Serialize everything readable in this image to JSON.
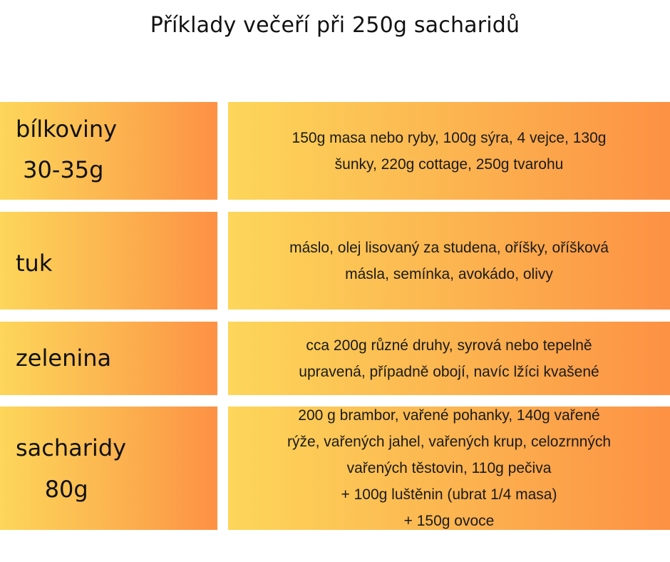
{
  "title": "Příklady večeří při 250g sacharidů",
  "rows": [
    {
      "label_lines": [
        "bílkoviny",
        " 30-35g"
      ],
      "desc_lines": [
        "150g masa nebo ryby, 100g sýra, 4 vejce, 130g",
        "šunky, 220g cottage, 250g tvarohu"
      ]
    },
    {
      "label_lines": [
        "tuk"
      ],
      "desc_lines": [
        "máslo, olej lisovaný za studena, oříšky, oříšková",
        "másla, semínka, avokádo, olivy"
      ]
    },
    {
      "label_lines": [
        "zelenina"
      ],
      "desc_lines": [
        "cca 200g různé druhy, syrová nebo tepelně",
        "upravená, případně obojí, navíc lžíci kvašené"
      ]
    },
    {
      "label_lines": [
        "sacharidy",
        "    80g"
      ],
      "desc_lines": [
        "200 g brambor, vařené pohanky, 140g vařené",
        "rýže, vařených jahel, vařených krup, celozrnných",
        "vařených těstovin, 110g pečiva",
        "+ 100g luštěnin (ubrat 1/4 masa)",
        "+ 150g ovoce"
      ]
    }
  ]
}
